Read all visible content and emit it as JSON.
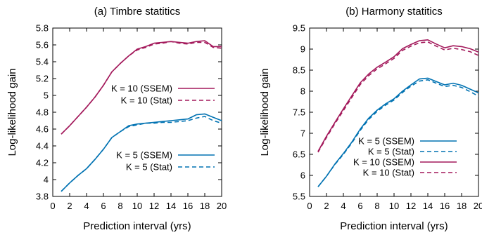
{
  "chart_data": [
    {
      "type": "line",
      "title": "(a) Timbre statitics",
      "xlabel": "Prediction interval (yrs)",
      "ylabel": "Log-likelihood gain",
      "xlim": [
        0,
        20
      ],
      "ylim": [
        3.8,
        5.8
      ],
      "xticks": [
        "0",
        "2",
        "4",
        "6",
        "8",
        "10",
        "12",
        "14",
        "16",
        "18",
        "20"
      ],
      "yticks": [
        "3.8",
        "4",
        "4.2",
        "4.4",
        "4.6",
        "4.8",
        "5",
        "5.2",
        "5.4",
        "5.6",
        "5.8"
      ],
      "grid": false,
      "legend": [
        "K = 10 (SSEM)",
        "K = 10 (Stat)",
        "K = 5 (SSEM)",
        "K = 5 (Stat)"
      ],
      "series": [
        {
          "name": "K = 10 (SSEM)",
          "color": "#a3195b",
          "dash": "solid",
          "x": [
            1,
            2,
            3,
            4,
            5,
            6,
            7,
            8,
            9,
            10,
            11,
            12,
            13,
            14,
            15,
            16,
            17,
            18,
            19,
            20
          ],
          "y": [
            4.54,
            4.64,
            4.75,
            4.86,
            4.98,
            5.12,
            5.28,
            5.38,
            5.47,
            5.55,
            5.58,
            5.62,
            5.63,
            5.64,
            5.63,
            5.62,
            5.64,
            5.65,
            5.58,
            5.58
          ]
        },
        {
          "name": "K = 10 (Stat)",
          "color": "#a3195b",
          "dash": "dashed",
          "x": [
            1,
            2,
            3,
            4,
            5,
            6,
            7,
            8,
            9,
            10,
            11,
            12,
            13,
            14,
            15,
            16,
            17,
            18,
            19,
            20
          ],
          "y": [
            4.54,
            4.64,
            4.75,
            4.86,
            4.98,
            5.12,
            5.28,
            5.38,
            5.47,
            5.54,
            5.57,
            5.61,
            5.62,
            5.64,
            5.62,
            5.61,
            5.63,
            5.63,
            5.57,
            5.56
          ]
        },
        {
          "name": "K = 5 (SSEM)",
          "color": "#0072b2",
          "dash": "solid",
          "x": [
            1,
            2,
            3,
            4,
            5,
            6,
            7,
            8,
            9,
            10,
            11,
            12,
            13,
            14,
            15,
            16,
            17,
            18,
            19,
            20
          ],
          "y": [
            3.86,
            3.96,
            4.05,
            4.13,
            4.24,
            4.36,
            4.5,
            4.57,
            4.64,
            4.66,
            4.67,
            4.68,
            4.69,
            4.7,
            4.71,
            4.72,
            4.77,
            4.78,
            4.74,
            4.7
          ]
        },
        {
          "name": "K = 5 (Stat)",
          "color": "#0072b2",
          "dash": "dashed",
          "x": [
            1,
            2,
            3,
            4,
            5,
            6,
            7,
            8,
            9,
            10,
            11,
            12,
            13,
            14,
            15,
            16,
            17,
            18,
            19,
            20
          ],
          "y": [
            3.86,
            3.96,
            4.05,
            4.13,
            4.24,
            4.36,
            4.5,
            4.57,
            4.63,
            4.65,
            4.67,
            4.67,
            4.68,
            4.68,
            4.69,
            4.7,
            4.73,
            4.75,
            4.7,
            4.67
          ]
        }
      ]
    },
    {
      "type": "line",
      "title": "(b) Harmony statitics",
      "xlabel": "Prediction interval (yrs)",
      "ylabel": "Log-likelihood gain",
      "xlim": [
        0,
        20
      ],
      "ylim": [
        5.5,
        9.5
      ],
      "xticks": [
        "0",
        "2",
        "4",
        "6",
        "8",
        "10",
        "12",
        "14",
        "16",
        "18",
        "20"
      ],
      "yticks": [
        "5.5",
        "6",
        "6.5",
        "7",
        "7.5",
        "8",
        "8.5",
        "9",
        "9.5"
      ],
      "grid": false,
      "legend": [
        "K = 5 (SSEM)",
        "K = 5 (Stat)",
        "K = 10 (SSEM)",
        "K = 10 (Stat)"
      ],
      "series": [
        {
          "name": "K = 5 (SSEM)",
          "color": "#0072b2",
          "dash": "solid",
          "x": [
            1,
            2,
            3,
            4,
            5,
            6,
            7,
            8,
            9,
            10,
            11,
            12,
            13,
            14,
            15,
            16,
            17,
            18,
            19,
            20
          ],
          "y": [
            5.73,
            5.98,
            6.27,
            6.52,
            6.79,
            7.1,
            7.36,
            7.55,
            7.7,
            7.82,
            8.0,
            8.15,
            8.29,
            8.31,
            8.23,
            8.15,
            8.19,
            8.14,
            8.05,
            7.96
          ]
        },
        {
          "name": "K = 5 (Stat)",
          "color": "#0072b2",
          "dash": "dashed",
          "x": [
            1,
            2,
            3,
            4,
            5,
            6,
            7,
            8,
            9,
            10,
            11,
            12,
            13,
            14,
            15,
            16,
            17,
            18,
            19,
            20
          ],
          "y": [
            5.73,
            5.98,
            6.26,
            6.5,
            6.77,
            7.07,
            7.33,
            7.52,
            7.67,
            7.79,
            7.97,
            8.12,
            8.24,
            8.27,
            8.19,
            8.11,
            8.14,
            8.09,
            7.99,
            7.88
          ]
        },
        {
          "name": "K = 10 (SSEM)",
          "color": "#a3195b",
          "dash": "solid",
          "x": [
            1,
            2,
            3,
            4,
            5,
            6,
            7,
            8,
            9,
            10,
            11,
            12,
            13,
            14,
            15,
            16,
            17,
            18,
            19,
            20
          ],
          "y": [
            6.57,
            6.93,
            7.26,
            7.58,
            7.89,
            8.2,
            8.41,
            8.57,
            8.69,
            8.82,
            9.01,
            9.11,
            9.2,
            9.22,
            9.12,
            9.03,
            9.08,
            9.06,
            9.01,
            8.93
          ]
        },
        {
          "name": "K = 10 (Stat)",
          "color": "#a3195b",
          "dash": "dashed",
          "x": [
            1,
            2,
            3,
            4,
            5,
            6,
            7,
            8,
            9,
            10,
            11,
            12,
            13,
            14,
            15,
            16,
            17,
            18,
            19,
            20
          ],
          "y": [
            6.55,
            6.9,
            7.23,
            7.54,
            7.85,
            8.16,
            8.37,
            8.53,
            8.65,
            8.78,
            8.97,
            9.07,
            9.15,
            9.17,
            9.07,
            8.98,
            9.02,
            8.99,
            8.94,
            8.85
          ]
        }
      ]
    }
  ]
}
